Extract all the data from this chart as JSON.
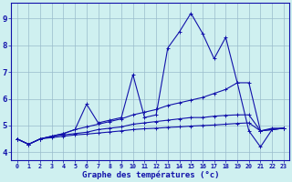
{
  "title": "Graphe des températures (°c)",
  "background_color": "#cff0f0",
  "grid_color": "#99bbcc",
  "line_color": "#1111aa",
  "x_ticks": [
    0,
    1,
    2,
    3,
    4,
    5,
    6,
    7,
    8,
    9,
    10,
    11,
    12,
    13,
    14,
    15,
    16,
    17,
    18,
    19,
    20,
    21,
    22,
    23
  ],
  "ylim": [
    3.7,
    9.6
  ],
  "xlim": [
    -0.5,
    23.5
  ],
  "yticks": [
    4,
    5,
    6,
    7,
    8,
    9
  ],
  "series": [
    [
      4.5,
      4.3,
      4.5,
      4.6,
      4.7,
      4.85,
      5.8,
      5.1,
      5.2,
      5.3,
      6.9,
      5.3,
      5.4,
      7.9,
      8.5,
      9.2,
      8.45,
      7.5,
      8.3,
      6.6,
      4.8,
      4.2,
      4.85,
      4.9
    ],
    [
      4.5,
      4.3,
      4.5,
      4.6,
      4.7,
      4.85,
      4.95,
      5.05,
      5.15,
      5.25,
      5.4,
      5.5,
      5.6,
      5.75,
      5.85,
      5.95,
      6.05,
      6.2,
      6.35,
      6.6,
      6.6,
      4.8,
      4.9,
      4.9
    ],
    [
      4.5,
      4.3,
      4.5,
      4.6,
      4.65,
      4.7,
      4.75,
      4.85,
      4.9,
      4.95,
      5.05,
      5.1,
      5.15,
      5.2,
      5.25,
      5.3,
      5.3,
      5.35,
      5.38,
      5.4,
      5.4,
      4.8,
      4.85,
      4.9
    ],
    [
      4.5,
      4.3,
      4.5,
      4.55,
      4.6,
      4.65,
      4.68,
      4.72,
      4.76,
      4.8,
      4.85,
      4.88,
      4.9,
      4.93,
      4.95,
      4.98,
      5.0,
      5.02,
      5.05,
      5.08,
      5.1,
      4.8,
      4.85,
      4.9
    ]
  ]
}
